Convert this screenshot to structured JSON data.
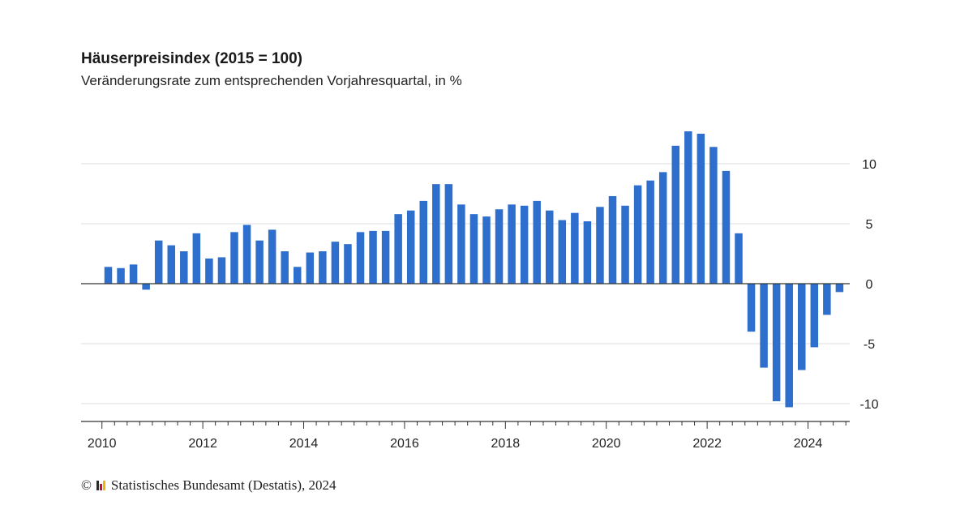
{
  "chart_data": {
    "type": "bar",
    "title": "Häuserpreisindex (2015 = 100)",
    "subtitle": "Veränderungsrate zum entsprechenden Vorjahresquartal, in %",
    "x_tick_labels": [
      "2010",
      "2012",
      "2014",
      "2016",
      "2018",
      "2020",
      "2022",
      "2024"
    ],
    "y_tick_labels": [
      "10",
      "5",
      "0",
      "-5",
      "-10"
    ],
    "y_ticks": [
      10,
      5,
      0,
      -5,
      -10
    ],
    "ylim": [
      -11.5,
      13
    ],
    "grid": true,
    "y_axis_position": "right",
    "bar_color": "#2e6fce",
    "categories": [
      "2010 Q1",
      "2010 Q2",
      "2010 Q3",
      "2010 Q4",
      "2011 Q1",
      "2011 Q2",
      "2011 Q3",
      "2011 Q4",
      "2012 Q1",
      "2012 Q2",
      "2012 Q3",
      "2012 Q4",
      "2013 Q1",
      "2013 Q2",
      "2013 Q3",
      "2013 Q4",
      "2014 Q1",
      "2014 Q2",
      "2014 Q3",
      "2014 Q4",
      "2015 Q1",
      "2015 Q2",
      "2015 Q3",
      "2015 Q4",
      "2016 Q1",
      "2016 Q2",
      "2016 Q3",
      "2016 Q4",
      "2017 Q1",
      "2017 Q2",
      "2017 Q3",
      "2017 Q4",
      "2018 Q1",
      "2018 Q2",
      "2018 Q3",
      "2018 Q4",
      "2019 Q1",
      "2019 Q2",
      "2019 Q3",
      "2019 Q4",
      "2020 Q1",
      "2020 Q2",
      "2020 Q3",
      "2020 Q4",
      "2021 Q1",
      "2021 Q2",
      "2021 Q3",
      "2021 Q4",
      "2022 Q1",
      "2022 Q2",
      "2022 Q3",
      "2022 Q4",
      "2023 Q1",
      "2023 Q2",
      "2023 Q3",
      "2023 Q4",
      "2024 Q1",
      "2024 Q2",
      "2024 Q3"
    ],
    "values": [
      1.4,
      1.3,
      1.6,
      -0.5,
      3.6,
      3.2,
      2.7,
      4.2,
      2.1,
      2.2,
      4.3,
      4.9,
      3.6,
      4.5,
      2.7,
      1.4,
      2.6,
      2.7,
      3.5,
      3.3,
      4.3,
      4.4,
      4.4,
      5.8,
      6.1,
      6.9,
      8.3,
      8.3,
      6.6,
      5.8,
      5.6,
      6.2,
      6.6,
      6.5,
      6.9,
      6.1,
      5.3,
      5.9,
      5.2,
      6.4,
      7.3,
      6.5,
      8.2,
      8.6,
      9.3,
      11.5,
      12.7,
      12.5,
      11.4,
      9.4,
      4.2,
      -4.0,
      -7.0,
      -9.8,
      -10.3,
      -7.2,
      -5.3,
      -2.6,
      -0.7
    ]
  },
  "footer": {
    "copyright": "©",
    "source": "Statistisches Bundesamt (Destatis), 2024",
    "logo_colors": [
      "#2a2a2a",
      "#c8102e",
      "#f2b705"
    ]
  }
}
